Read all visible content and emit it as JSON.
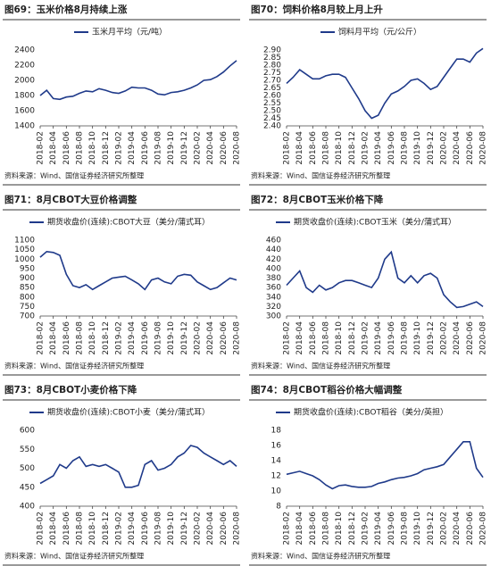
{
  "chart_data": [
    {
      "type": "line",
      "title": "图69：玉米价格8月持续上涨",
      "source": "资料来源：Wind、国信证券经济研究所整理",
      "categories": [
        "2018-02",
        null,
        "2018-04",
        null,
        "2018-06",
        null,
        "2018-08",
        null,
        "2018-10",
        null,
        "2018-12",
        null,
        "2019-02",
        null,
        "2019-04",
        null,
        "2019-06",
        null,
        "2019-08",
        null,
        "2019-10",
        null,
        "2019-12",
        null,
        "2020-02",
        null,
        "2020-04",
        null,
        "2020-06",
        null,
        "2020-08"
      ],
      "series": [
        {
          "name": "玉米月平均（元/吨）",
          "color": "#1f3a8a",
          "values": [
            1800,
            1870,
            1760,
            1750,
            1780,
            1790,
            1830,
            1860,
            1850,
            1890,
            1870,
            1840,
            1830,
            1860,
            1910,
            1900,
            1900,
            1870,
            1820,
            1810,
            1840,
            1850,
            1870,
            1900,
            1940,
            2000,
            2010,
            2050,
            2110,
            2190,
            2260
          ]
        }
      ],
      "ylim": [
        1400,
        2400
      ],
      "yticks": [
        1400,
        1600,
        1800,
        2000,
        2200,
        2400
      ]
    },
    {
      "type": "line",
      "title": "图70：饲料价格8月较上月上升",
      "source": "资料来源：Wind、国信证券经济研究所整理",
      "categories": [
        "2018-02",
        null,
        "2018-04",
        null,
        "2018-06",
        null,
        "2018-08",
        null,
        "2018-10",
        null,
        "2018-12",
        null,
        "2019-02",
        null,
        "2019-04",
        null,
        "2019-06",
        null,
        "2019-08",
        null,
        "2019-10",
        null,
        "2019-12",
        null,
        "2020-02",
        null,
        "2020-04",
        null,
        "2020-06",
        null,
        "2020-08"
      ],
      "series": [
        {
          "name": "饲料月平均（元/公斤）",
          "color": "#1f3a8a",
          "values": [
            2.68,
            2.72,
            2.77,
            2.74,
            2.71,
            2.71,
            2.73,
            2.74,
            2.74,
            2.72,
            2.65,
            2.58,
            2.5,
            2.45,
            2.47,
            2.55,
            2.61,
            2.63,
            2.66,
            2.7,
            2.71,
            2.68,
            2.64,
            2.66,
            2.72,
            2.78,
            2.84,
            2.84,
            2.82,
            2.88,
            2.91
          ]
        }
      ],
      "ylim": [
        2.4,
        2.9
      ],
      "yticks": [
        {
          "value": 2.4,
          "label": "2.40"
        },
        {
          "value": 2.45,
          "label": "2.45"
        },
        {
          "value": 2.5,
          "label": "2.50"
        },
        {
          "value": 2.55,
          "label": "2.55"
        },
        {
          "value": 2.6,
          "label": "2.60"
        },
        {
          "value": 2.65,
          "label": "2.65"
        },
        {
          "value": 2.7,
          "label": "2.70"
        },
        {
          "value": 2.75,
          "label": "2.75"
        },
        {
          "value": 2.8,
          "label": "2.80"
        },
        {
          "value": 2.85,
          "label": "2.85"
        },
        {
          "value": 2.9,
          "label": "2.90"
        }
      ]
    },
    {
      "type": "line",
      "title": "图71：8月CBOT大豆价格调整",
      "source": "资料来源：Wind、国信证券经济研究所整理",
      "categories": [
        "2018-02",
        null,
        "2018-04",
        null,
        "2018-06",
        null,
        "2018-08",
        null,
        "2018-10",
        null,
        "2018-12",
        null,
        "2019-02",
        null,
        "2019-04",
        null,
        "2019-06",
        null,
        "2019-08",
        null,
        "2019-10",
        null,
        "2019-12",
        null,
        "2020-02",
        null,
        "2020-04",
        null,
        "2020-06",
        null,
        "2020-08"
      ],
      "series": [
        {
          "name": "期货收盘价(连续):CBOT大豆（美分/蒲式耳）",
          "color": "#1f3a8a",
          "values": [
            1010,
            1040,
            1035,
            1020,
            920,
            860,
            850,
            865,
            840,
            860,
            880,
            900,
            905,
            910,
            890,
            870,
            840,
            890,
            900,
            880,
            870,
            910,
            920,
            915,
            880,
            860,
            840,
            850,
            875,
            900,
            890
          ]
        }
      ],
      "ylim": [
        700,
        1100
      ],
      "yticks": [
        700,
        750,
        800,
        850,
        900,
        950,
        1000,
        1050,
        1100
      ]
    },
    {
      "type": "line",
      "title": "图72：8月CBOT玉米价格下降",
      "source": "资料来源：Wind、国信证券经济研究所整理",
      "categories": [
        "2018-02",
        null,
        "2018-04",
        null,
        "2018-06",
        null,
        "2018-08",
        null,
        "2018-10",
        null,
        "2018-12",
        null,
        "2019-02",
        null,
        "2019-04",
        null,
        "2019-06",
        null,
        "2019-08",
        null,
        "2019-10",
        null,
        "2019-12",
        null,
        "2020-02",
        null,
        "2020-04",
        null,
        "2020-06",
        null,
        "2020-08"
      ],
      "series": [
        {
          "name": "期货收盘价(连续):CBOT玉米（美分/蒲式耳）",
          "color": "#1f3a8a",
          "values": [
            365,
            380,
            395,
            360,
            350,
            365,
            355,
            360,
            370,
            375,
            375,
            370,
            365,
            360,
            380,
            420,
            435,
            380,
            370,
            385,
            370,
            385,
            390,
            380,
            345,
            330,
            318,
            320,
            325,
            330,
            320
          ]
        }
      ],
      "ylim": [
        300,
        460
      ],
      "yticks": [
        300,
        320,
        340,
        360,
        380,
        400,
        420,
        440,
        460
      ]
    },
    {
      "type": "line",
      "title": "图73：8月CBOT小麦价格下降",
      "source": "资料来源：Wind、国信证券经济研究所整理",
      "categories": [
        "2018-02",
        null,
        "2018-04",
        null,
        "2018-06",
        null,
        "2018-08",
        null,
        "2018-10",
        null,
        "2018-12",
        null,
        "2019-02",
        null,
        "2019-04",
        null,
        "2019-06",
        null,
        "2019-08",
        null,
        "2019-10",
        null,
        "2019-12",
        null,
        "2020-02",
        null,
        "2020-04",
        null,
        "2020-06",
        null,
        "2020-08"
      ],
      "series": [
        {
          "name": "期货收盘价(连续):CBOT小麦（美分/蒲式耳）",
          "color": "#1f3a8a",
          "values": [
            460,
            470,
            480,
            510,
            500,
            520,
            530,
            505,
            510,
            505,
            510,
            500,
            490,
            450,
            450,
            455,
            510,
            520,
            495,
            500,
            510,
            530,
            540,
            560,
            555,
            540,
            530,
            520,
            510,
            520,
            505
          ]
        }
      ],
      "ylim": [
        400,
        600
      ],
      "yticks": [
        400,
        450,
        500,
        550,
        600
      ]
    },
    {
      "type": "line",
      "title": "图74：8月CBOT稻谷价格大幅调整",
      "source": "资料来源：Wind、国信证券经济研究所整理",
      "categories": [
        "2018-02",
        null,
        "2018-04",
        null,
        "2018-06",
        null,
        "2018-08",
        null,
        "2018-10",
        null,
        "2018-12",
        null,
        "2019-02",
        null,
        "2019-04",
        null,
        "2019-06",
        null,
        "2019-08",
        null,
        "2019-10",
        null,
        "2019-12",
        null,
        "2020-02",
        null,
        "2020-04",
        null,
        "2020-06",
        null,
        "2020-08"
      ],
      "series": [
        {
          "name": "期货收盘价(连续):CBOT稻谷（美分/英担）",
          "color": "#1f3a8a",
          "values": [
            12.2,
            12.4,
            12.6,
            12.3,
            12.0,
            11.5,
            10.8,
            10.3,
            10.7,
            10.8,
            10.6,
            10.5,
            10.5,
            10.6,
            11.0,
            11.2,
            11.5,
            11.7,
            11.8,
            12.0,
            12.3,
            12.8,
            13.0,
            13.2,
            13.5,
            14.5,
            15.5,
            16.5,
            16.5,
            13.0,
            11.8
          ]
        }
      ],
      "ylim": [
        8,
        18
      ],
      "yticks": [
        8,
        10,
        12,
        14,
        16,
        18
      ]
    }
  ]
}
